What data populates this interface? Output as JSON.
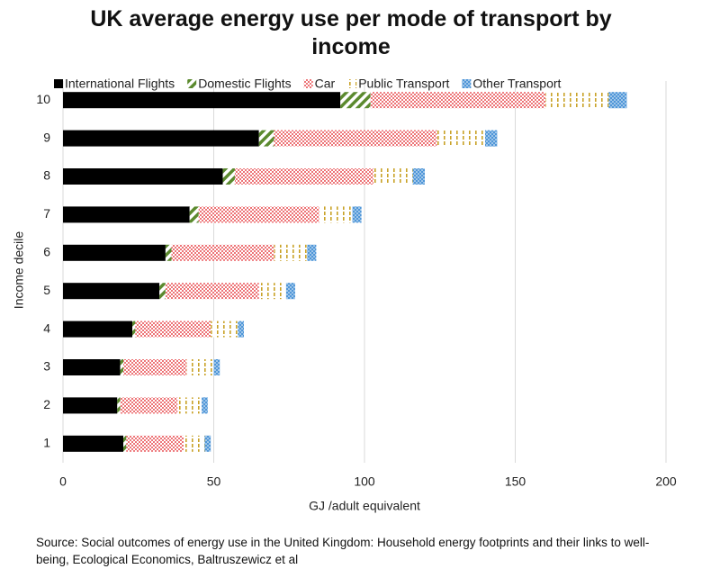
{
  "chart_data": {
    "type": "stacked-bar-horizontal",
    "title": "UK average energy use per mode of transport by income",
    "x_label": "GJ /adult equivalent",
    "y_label": "Income decile",
    "source": "Source: Social outcomes of energy use in the United Kingdom: Household energy footprints and their links to well-being, Ecological Economics, Baltruszewicz et al",
    "categories": [
      "1",
      "2",
      "3",
      "4",
      "5",
      "6",
      "7",
      "8",
      "9",
      "10"
    ],
    "series": [
      {
        "name": "International Flights",
        "color": "#000000",
        "values": [
          20,
          18,
          19,
          23,
          32,
          34,
          42,
          53,
          65,
          92
        ]
      },
      {
        "name": "Domestic Flights",
        "color": "#5b8a2e",
        "values": [
          1,
          1,
          1,
          1,
          2,
          2,
          3,
          4,
          5,
          10
        ]
      },
      {
        "name": "Car",
        "color": "#e8474b",
        "values": [
          19,
          19,
          21,
          25,
          31,
          34,
          40,
          46,
          54,
          58
        ]
      },
      {
        "name": "Public Transport",
        "color": "#c9a227",
        "values": [
          7,
          8,
          9,
          9,
          9,
          11,
          11,
          13,
          16,
          21
        ]
      },
      {
        "name": "Other Transport",
        "color": "#4f96d8",
        "values": [
          2,
          2,
          2,
          2,
          3,
          3,
          3,
          4,
          4,
          6
        ]
      }
    ],
    "xlim": [
      0,
      200
    ],
    "xticks": [
      0,
      50,
      100,
      150,
      200
    ],
    "grid": true,
    "legend": "top"
  }
}
